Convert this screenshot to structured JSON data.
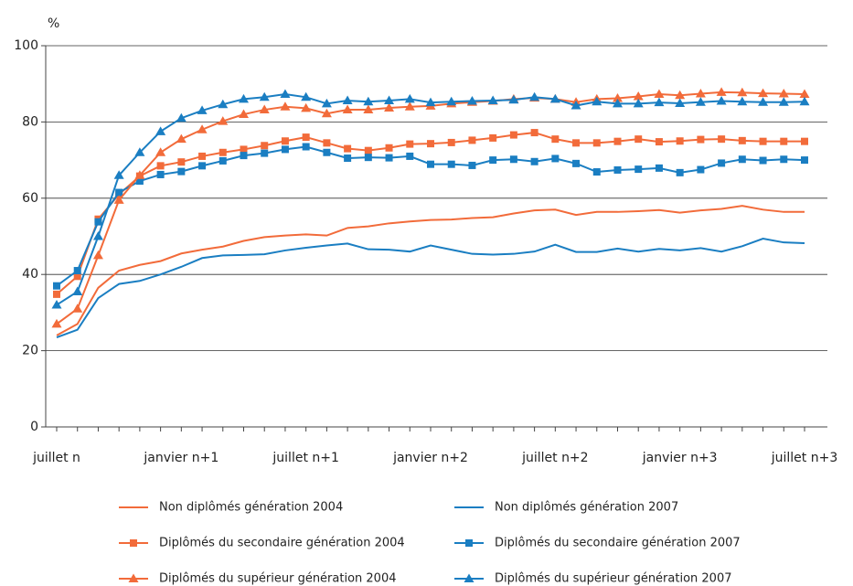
{
  "chart_data": {
    "type": "line",
    "y_label": "%",
    "categories": [
      "juillet n",
      null,
      null,
      null,
      null,
      null,
      "janvier n+1",
      null,
      null,
      null,
      null,
      null,
      "juillet n+1",
      null,
      null,
      null,
      null,
      null,
      "janvier n+2",
      null,
      null,
      null,
      null,
      null,
      "juillet n+2",
      null,
      null,
      null,
      null,
      null,
      "janvier n+3",
      null,
      null,
      null,
      null,
      null,
      "juillet n+3"
    ],
    "ylim": [
      0,
      100
    ],
    "yticks": [
      0,
      20,
      40,
      60,
      80,
      100
    ],
    "grid": true,
    "series": [
      {
        "name": "Non diplômés génération 2004",
        "color": "#f26b3a",
        "marker": "none",
        "values": [
          24,
          27,
          36.5,
          41,
          42.5,
          43.5,
          45.5,
          46.5,
          47.3,
          48.8,
          49.8,
          50.2,
          50.5,
          50.2,
          52.2,
          52.6,
          53.4,
          53.9,
          54.3,
          54.4,
          54.8,
          55,
          56,
          56.8,
          57,
          55.6,
          56.4,
          56.4,
          56.6,
          56.9,
          56.2,
          56.8,
          57.2,
          58,
          57,
          56.4,
          56.4
        ]
      },
      {
        "name": "Non diplômés génération 2007",
        "color": "#1a7ec2",
        "marker": "none",
        "values": [
          23.5,
          25.5,
          33.8,
          37.5,
          38.3,
          40,
          42,
          44.3,
          45,
          45.1,
          45.3,
          46.3,
          47,
          47.6,
          48.1,
          46.6,
          46.5,
          46,
          47.6,
          46.5,
          45.4,
          45.2,
          45.4,
          46,
          47.8,
          45.9,
          45.9,
          46.8,
          46,
          46.7,
          46.3,
          46.9,
          46,
          47.4,
          49.4,
          48.4,
          48.2
        ]
      },
      {
        "name": "Diplômés du secondaire génération 2004",
        "color": "#f26b3a",
        "marker": "square",
        "values": [
          34.8,
          39.5,
          54.5,
          61,
          65.8,
          68.5,
          69.5,
          71,
          72,
          72.8,
          73.8,
          75,
          76,
          74.5,
          73,
          72.5,
          73.2,
          74.2,
          74.3,
          74.6,
          75.2,
          75.8,
          76.6,
          77.2,
          75.5,
          74.5,
          74.5,
          74.9,
          75.5,
          74.8,
          75,
          75.4,
          75.5,
          75.1,
          74.9,
          74.9,
          74.9
        ]
      },
      {
        "name": "Diplômés du secondaire génération 2007",
        "color": "#1a7ec2",
        "marker": "square",
        "values": [
          37,
          41,
          53.8,
          61.5,
          64.5,
          66.2,
          67,
          68.5,
          69.8,
          71.2,
          71.8,
          72.8,
          73.5,
          72,
          70.5,
          70.7,
          70.6,
          71,
          68.9,
          68.9,
          68.6,
          70,
          70.2,
          69.6,
          70.4,
          69.1,
          66.9,
          67.4,
          67.6,
          67.9,
          66.7,
          67.5,
          69.2,
          70.2,
          69.9,
          70.2,
          70
        ]
      },
      {
        "name": "Diplômés du supérieur génération 2004",
        "color": "#f26b3a",
        "marker": "triangle",
        "values": [
          27,
          31,
          45,
          59.5,
          66,
          72,
          75.5,
          78,
          80.2,
          82,
          83.2,
          84,
          83.6,
          82.2,
          83.2,
          83.2,
          83.7,
          84,
          84.2,
          84.8,
          85.2,
          85.5,
          86,
          86.3,
          86,
          85.2,
          86,
          86.2,
          86.7,
          87.3,
          87,
          87.4,
          87.8,
          87.7,
          87.5,
          87.4,
          87.3
        ]
      },
      {
        "name": "Diplômés du supérieur génération 2007",
        "color": "#1a7ec2",
        "marker": "triangle",
        "values": [
          32,
          35.5,
          50,
          66,
          72,
          77.5,
          81,
          83,
          84.6,
          86,
          86.5,
          87.3,
          86.5,
          84.8,
          85.6,
          85.3,
          85.6,
          86,
          85.1,
          85.3,
          85.5,
          85.6,
          85.8,
          86.5,
          86,
          84.3,
          85.3,
          84.8,
          84.8,
          85.1,
          84.9,
          85.2,
          85.5,
          85.3,
          85.2,
          85.2,
          85.3
        ]
      }
    ]
  }
}
